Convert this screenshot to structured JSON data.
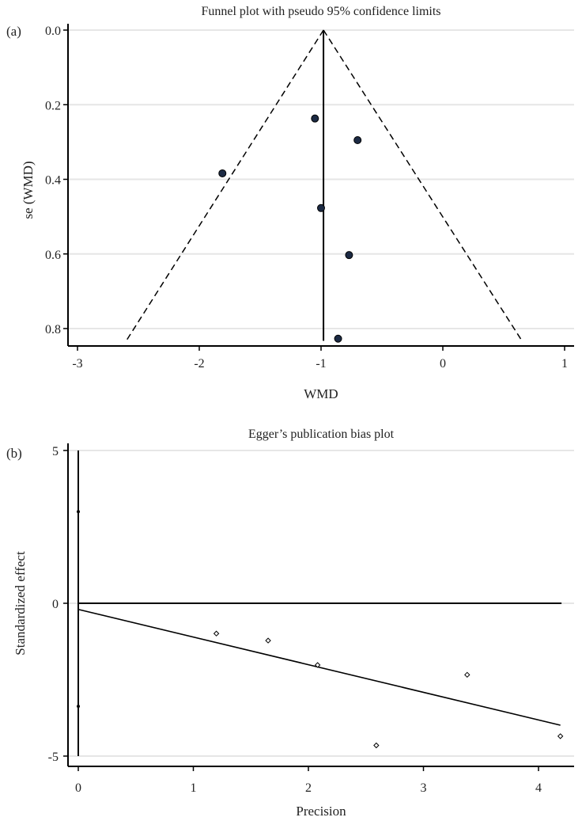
{
  "chart_data": [
    {
      "panel_label": "(a)",
      "type": "scatter",
      "title": "Funnel plot with pseudo 95% confidence limits",
      "xlabel": "WMD",
      "ylabel": "se (WMD)",
      "xlim": [
        -3,
        1
      ],
      "ylim": [
        0.0,
        0.8
      ],
      "y_reversed": true,
      "xticks": [
        "-3",
        "-2",
        "-1",
        "0",
        "1"
      ],
      "yticks": [
        "0.0",
        "0.2",
        "0.4",
        "0.6",
        "0.8"
      ],
      "grid": "horizontal",
      "points": [
        {
          "x": -1.05,
          "y": 0.237
        },
        {
          "x": -0.7,
          "y": 0.295
        },
        {
          "x": -1.81,
          "y": 0.384
        },
        {
          "x": -1.0,
          "y": 0.477
        },
        {
          "x": -0.77,
          "y": 0.603
        },
        {
          "x": -0.86,
          "y": 0.827
        }
      ],
      "pooled_estimate_line": {
        "x": -0.98,
        "y_from": 0.0,
        "y_to": 0.833
      },
      "confidence_limits": {
        "apex": {
          "x": -0.98,
          "y": 0.0
        },
        "lower": {
          "x": -2.6,
          "y": 0.833
        },
        "upper": {
          "x": 0.65,
          "y": 0.833
        },
        "style": "dashed"
      },
      "marker_color": "#1c2a44"
    },
    {
      "panel_label": "(b)",
      "type": "scatter",
      "title": "Egger’s publication bias plot",
      "xlabel": "Precision",
      "ylabel": "Standardized effect",
      "xlim": [
        0,
        4.2
      ],
      "ylim": [
        -5,
        5
      ],
      "xticks": [
        "0",
        "1",
        "2",
        "3",
        "4"
      ],
      "yticks": [
        "-5",
        "0",
        "5"
      ],
      "grid": "horizontal",
      "points": [
        {
          "x": 1.2,
          "y": -0.99
        },
        {
          "x": 1.65,
          "y": -1.22
        },
        {
          "x": 2.08,
          "y": -2.02
        },
        {
          "x": 2.59,
          "y": -4.65
        },
        {
          "x": 3.38,
          "y": -2.34
        },
        {
          "x": 4.19,
          "y": -4.35
        }
      ],
      "intercept_ci": {
        "x": 0,
        "low": -5,
        "high": 5,
        "marks": [
          3.0,
          -3.37
        ]
      },
      "zero_line": {
        "y": 0,
        "x_from": 0,
        "x_to": 4.2
      },
      "regression_line": {
        "x1": 0,
        "y1": -0.2,
        "x2": 4.19,
        "y2": -3.99
      },
      "marker": "hollow-diamond"
    }
  ]
}
